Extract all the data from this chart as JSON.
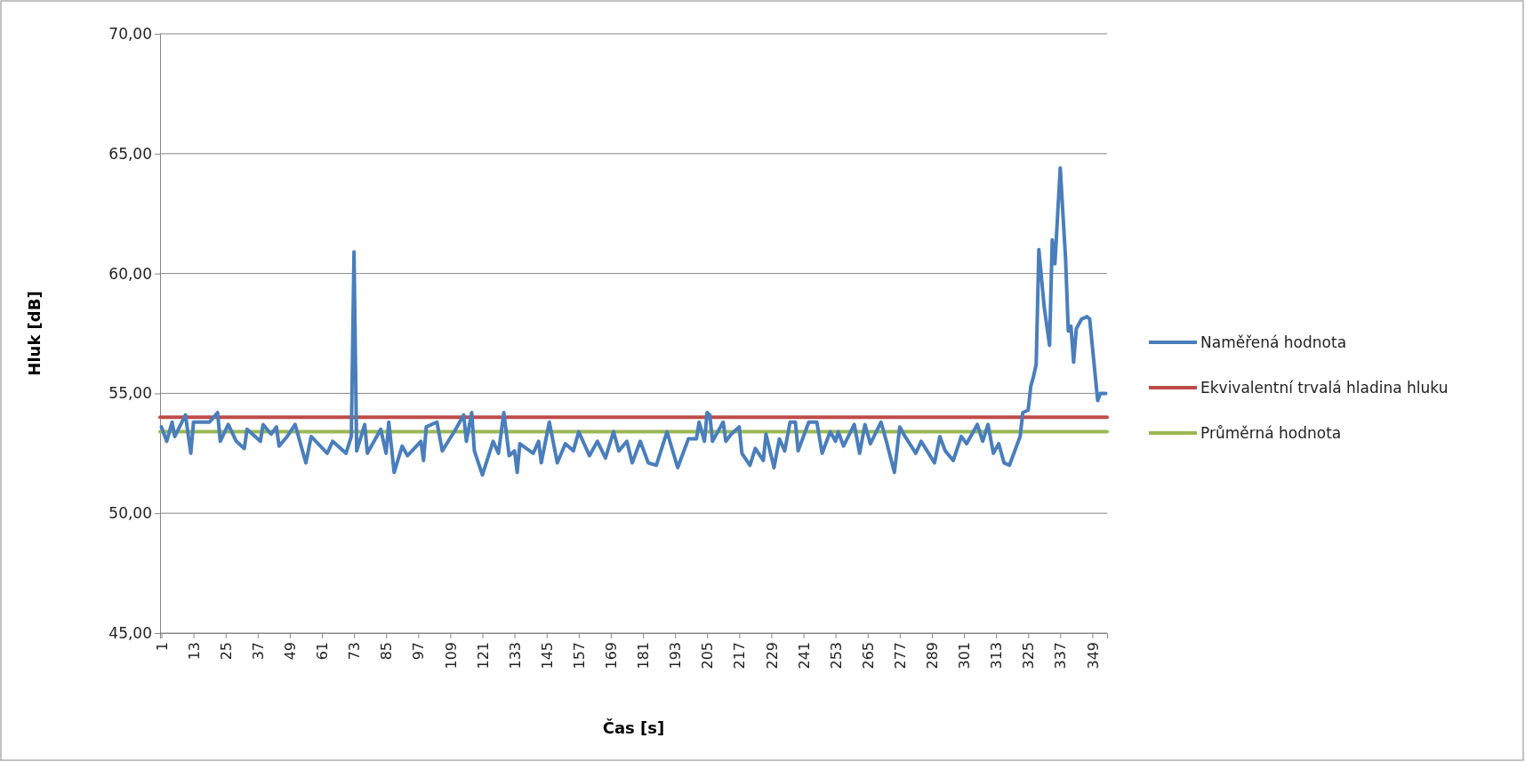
{
  "chart_data": {
    "type": "line",
    "xlabel": "Čas [s]",
    "ylabel": "Hluk [dB]",
    "xlim": [
      0.5,
      354.5
    ],
    "xticks": [
      1,
      13,
      25,
      37,
      49,
      61,
      73,
      85,
      97,
      109,
      121,
      133,
      145,
      157,
      169,
      181,
      193,
      205,
      217,
      229,
      241,
      253,
      265,
      277,
      289,
      301,
      313,
      325,
      337,
      349
    ],
    "ylim": [
      45,
      70
    ],
    "yticks": [
      {
        "value": 45,
        "label": "45,00"
      },
      {
        "value": 50,
        "label": "50,00"
      },
      {
        "value": 55,
        "label": "55,00"
      },
      {
        "value": 60,
        "label": "60,00"
      },
      {
        "value": 65,
        "label": "65,00"
      },
      {
        "value": 70,
        "label": "70,00"
      }
    ],
    "grid": "y",
    "legend": "right",
    "line_style": "solid",
    "series": [
      {
        "name": "Naměřená hodnota",
        "color": "#4a7ebb",
        "x": [
          1,
          3,
          5,
          6,
          10,
          12,
          13,
          19,
          22,
          23,
          26,
          29,
          32,
          33,
          38,
          39,
          42,
          44,
          45,
          48,
          51,
          55,
          57,
          63,
          65,
          70,
          72,
          73,
          74,
          77,
          78,
          83,
          85,
          86,
          88,
          91,
          93,
          98,
          99,
          100,
          104,
          106,
          111,
          114,
          115,
          117,
          118,
          121,
          125,
          127,
          129,
          131,
          133,
          134,
          135,
          140,
          142,
          143,
          146,
          149,
          152,
          155,
          157,
          161,
          164,
          167,
          170,
          172,
          175,
          177,
          180,
          183,
          186,
          190,
          194,
          198,
          201,
          202,
          204,
          205,
          206,
          207,
          211,
          212,
          214,
          217,
          218,
          221,
          223,
          226,
          227,
          230,
          232,
          234,
          236,
          238,
          239,
          243,
          246,
          248,
          251,
          253,
          254,
          256,
          260,
          262,
          264,
          266,
          270,
          272,
          275,
          277,
          279,
          283,
          285,
          290,
          292,
          294,
          297,
          300,
          302,
          306,
          308,
          310,
          312,
          314,
          316,
          318,
          321,
          322,
          323,
          325,
          326,
          327,
          328,
          329,
          331,
          333,
          334,
          335,
          337,
          339,
          340,
          341,
          342,
          343,
          345,
          347,
          348,
          351,
          352,
          354
        ],
        "values": [
          53.6,
          53.0,
          53.8,
          53.2,
          54.1,
          52.5,
          53.8,
          53.8,
          54.2,
          53.0,
          53.7,
          53.0,
          52.7,
          53.5,
          53.0,
          53.7,
          53.3,
          53.6,
          52.8,
          53.2,
          53.7,
          52.1,
          53.2,
          52.5,
          53.0,
          52.5,
          53.2,
          60.9,
          52.6,
          53.7,
          52.5,
          53.5,
          52.5,
          53.8,
          51.7,
          52.8,
          52.4,
          53.0,
          52.2,
          53.6,
          53.8,
          52.6,
          53.5,
          54.1,
          53.0,
          54.2,
          52.6,
          51.6,
          53.0,
          52.5,
          54.2,
          52.4,
          52.6,
          51.7,
          52.9,
          52.5,
          53.0,
          52.1,
          53.8,
          52.1,
          52.9,
          52.6,
          53.4,
          52.4,
          53.0,
          52.3,
          53.4,
          52.6,
          53.0,
          52.1,
          53.0,
          52.1,
          52.0,
          53.4,
          51.9,
          53.1,
          53.1,
          53.8,
          53.0,
          54.2,
          54.1,
          53.0,
          53.8,
          53.0,
          53.3,
          53.6,
          52.5,
          52.0,
          52.7,
          52.2,
          53.3,
          51.9,
          53.1,
          52.6,
          53.8,
          53.8,
          52.6,
          53.8,
          53.8,
          52.5,
          53.4,
          53.0,
          53.4,
          52.8,
          53.7,
          52.5,
          53.7,
          52.9,
          53.8,
          53.0,
          51.7,
          53.6,
          53.2,
          52.5,
          53.0,
          52.1,
          53.2,
          52.6,
          52.2,
          53.2,
          52.9,
          53.7,
          53.0,
          53.7,
          52.5,
          52.9,
          52.1,
          52.0,
          52.9,
          53.2,
          54.2,
          54.3,
          55.3,
          55.7,
          56.2,
          61.0,
          58.6,
          57.0,
          61.4,
          60.4,
          64.4,
          60.6,
          57.6,
          57.8,
          56.3,
          57.7,
          58.1,
          58.2,
          58.1,
          54.7,
          55.0,
          55.0
        ]
      },
      {
        "name": "Ekvivalentní trvalá hladina hluku",
        "color": "#be4b48",
        "x": [
          0.5,
          354.5
        ],
        "values": [
          54.0,
          54.0
        ]
      },
      {
        "name": "Průměrná hodnota",
        "color": "#98b954",
        "x": [
          0.5,
          354.5
        ],
        "values": [
          53.4,
          53.4
        ]
      }
    ]
  }
}
